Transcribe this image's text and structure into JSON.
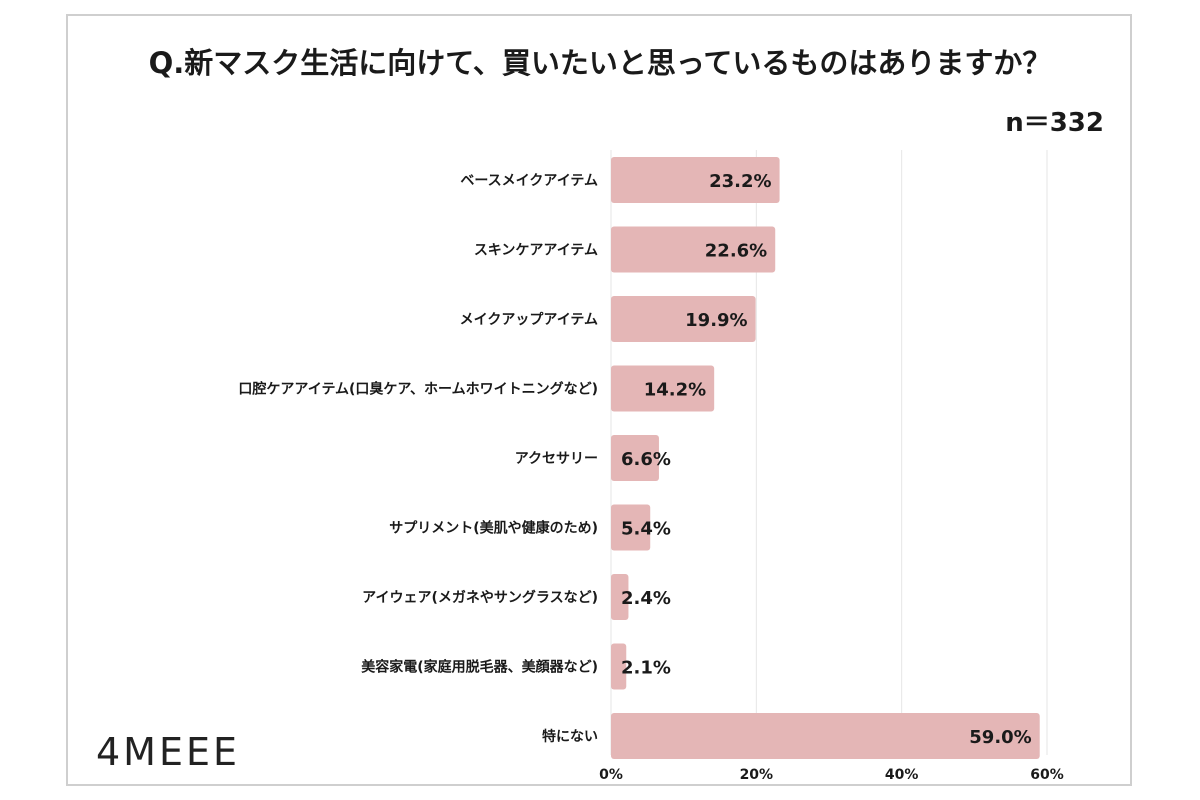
{
  "title": "Q.新マスク生活に向けて、買いたいと思っているものはありますか？",
  "sample_size": "n＝332",
  "logo_text": "4MEEE",
  "colors": {
    "bar": "#e4b6b6",
    "grid": "#e6e6e6",
    "text": "#1a1a1a"
  },
  "chart_data": {
    "type": "bar",
    "orientation": "horizontal",
    "title": "Q.新マスク生活に向けて、買いたいと思っているものはありますか？",
    "categories": [
      "ベースメイクアイテム",
      "スキンケアアイテム",
      "メイクアップアイテム",
      "口腔ケアアイテム(口臭ケア、ホームホワイトニングなど)",
      "アクセサリー",
      "サプリメント(美肌や健康のため)",
      "アイウェア(メガネやサングラスなど)",
      "美容家電(家庭用脱毛器、美顔器など)",
      "特にない"
    ],
    "values": [
      23.2,
      22.6,
      19.9,
      14.2,
      6.6,
      5.4,
      2.4,
      2.1,
      59.0
    ],
    "value_labels": [
      "23.2%",
      "22.6%",
      "19.9%",
      "14.2%",
      "6.6%",
      "5.4%",
      "2.4%",
      "2.1%",
      "59.0%"
    ],
    "xlim": [
      0,
      60
    ],
    "xticks": [
      0,
      20,
      40,
      60
    ],
    "xtick_labels": [
      "0%",
      "20%",
      "40%",
      "60%"
    ],
    "grid": true,
    "legend": "none"
  }
}
